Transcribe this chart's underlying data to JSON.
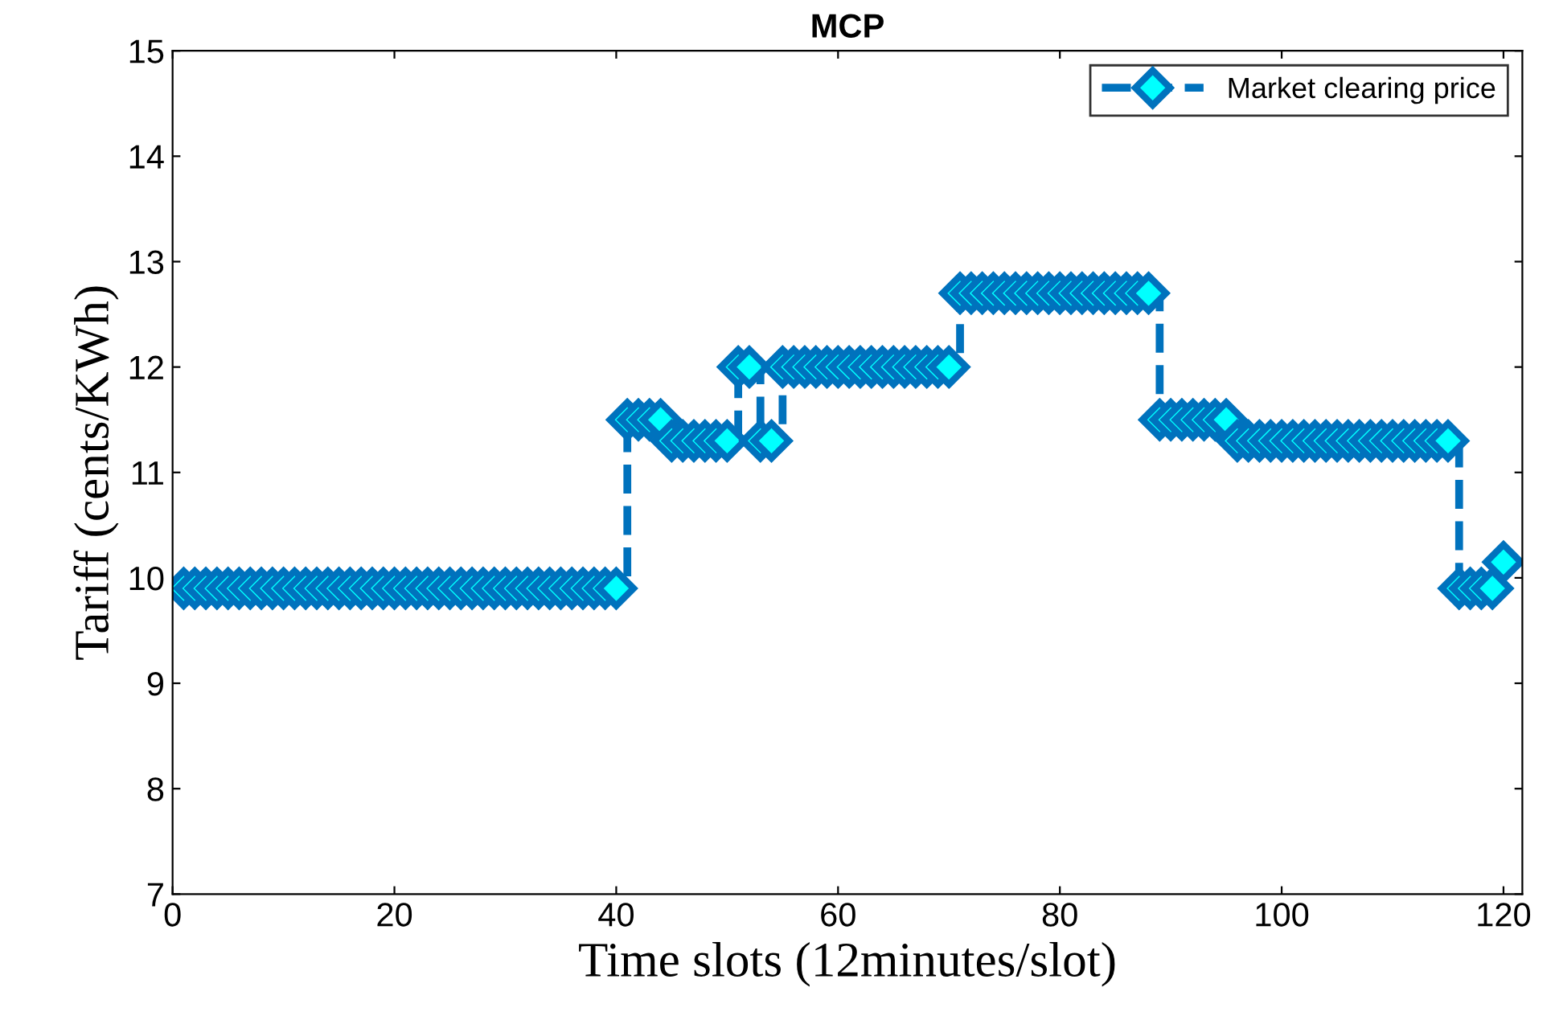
{
  "chart_data": {
    "type": "step",
    "title": "MCP",
    "xlabel": "Time slots (12minutes/slot)",
    "ylabel": "Tariff (cents/KWh)",
    "xlim": [
      0,
      121.7
    ],
    "xticks": [
      0,
      20,
      40,
      60,
      80,
      100,
      120
    ],
    "ylim": [
      7,
      15
    ],
    "yticks": [
      7,
      8,
      9,
      10,
      11,
      12,
      13,
      14,
      15
    ],
    "x": [
      1,
      2,
      3,
      4,
      5,
      6,
      7,
      8,
      9,
      10,
      11,
      12,
      13,
      14,
      15,
      16,
      17,
      18,
      19,
      20,
      21,
      22,
      23,
      24,
      25,
      26,
      27,
      28,
      29,
      30,
      31,
      32,
      33,
      34,
      35,
      36,
      37,
      38,
      39,
      40,
      41,
      42,
      43,
      44,
      45,
      46,
      47,
      48,
      49,
      50,
      51,
      52,
      53,
      54,
      55,
      56,
      57,
      58,
      59,
      60,
      61,
      62,
      63,
      64,
      65,
      66,
      67,
      68,
      69,
      70,
      71,
      72,
      73,
      74,
      75,
      76,
      77,
      78,
      79,
      80,
      81,
      82,
      83,
      84,
      85,
      86,
      87,
      88,
      89,
      90,
      91,
      92,
      93,
      94,
      95,
      96,
      97,
      98,
      99,
      100,
      101,
      102,
      103,
      104,
      105,
      106,
      107,
      108,
      109,
      110,
      111,
      112,
      113,
      114,
      115,
      116,
      117,
      118,
      119,
      120
    ],
    "series": [
      {
        "name": "Market clearing price",
        "color": "#0072bd",
        "values": [
          9.9,
          9.9,
          9.9,
          9.9,
          9.9,
          9.9,
          9.9,
          9.9,
          9.9,
          9.9,
          9.9,
          9.9,
          9.9,
          9.9,
          9.9,
          9.9,
          9.9,
          9.9,
          9.9,
          9.9,
          9.9,
          9.9,
          9.9,
          9.9,
          9.9,
          9.9,
          9.9,
          9.9,
          9.9,
          9.9,
          9.9,
          9.9,
          9.9,
          9.9,
          9.9,
          9.9,
          9.9,
          9.9,
          9.9,
          9.9,
          11.5,
          11.5,
          11.5,
          11.5,
          11.3,
          11.3,
          11.3,
          11.3,
          11.3,
          11.3,
          12.0,
          12.0,
          11.3,
          11.3,
          12.0,
          12.0,
          12.0,
          12.0,
          12.0,
          12.0,
          12.0,
          12.0,
          12.0,
          12.0,
          12.0,
          12.0,
          12.0,
          12.0,
          12.0,
          12.0,
          12.7,
          12.7,
          12.7,
          12.7,
          12.7,
          12.7,
          12.7,
          12.7,
          12.7,
          12.7,
          12.7,
          12.7,
          12.7,
          12.7,
          12.7,
          12.7,
          12.7,
          12.7,
          11.5,
          11.5,
          11.5,
          11.5,
          11.5,
          11.5,
          11.5,
          11.3,
          11.3,
          11.3,
          11.3,
          11.3,
          11.3,
          11.3,
          11.3,
          11.3,
          11.3,
          11.3,
          11.3,
          11.3,
          11.3,
          11.3,
          11.3,
          11.3,
          11.3,
          11.3,
          11.3,
          9.9,
          9.9,
          9.9,
          9.9,
          10.15
        ]
      }
    ],
    "marker": "diamond",
    "line_style": "dashed",
    "legend": "top right",
    "grid": false
  }
}
